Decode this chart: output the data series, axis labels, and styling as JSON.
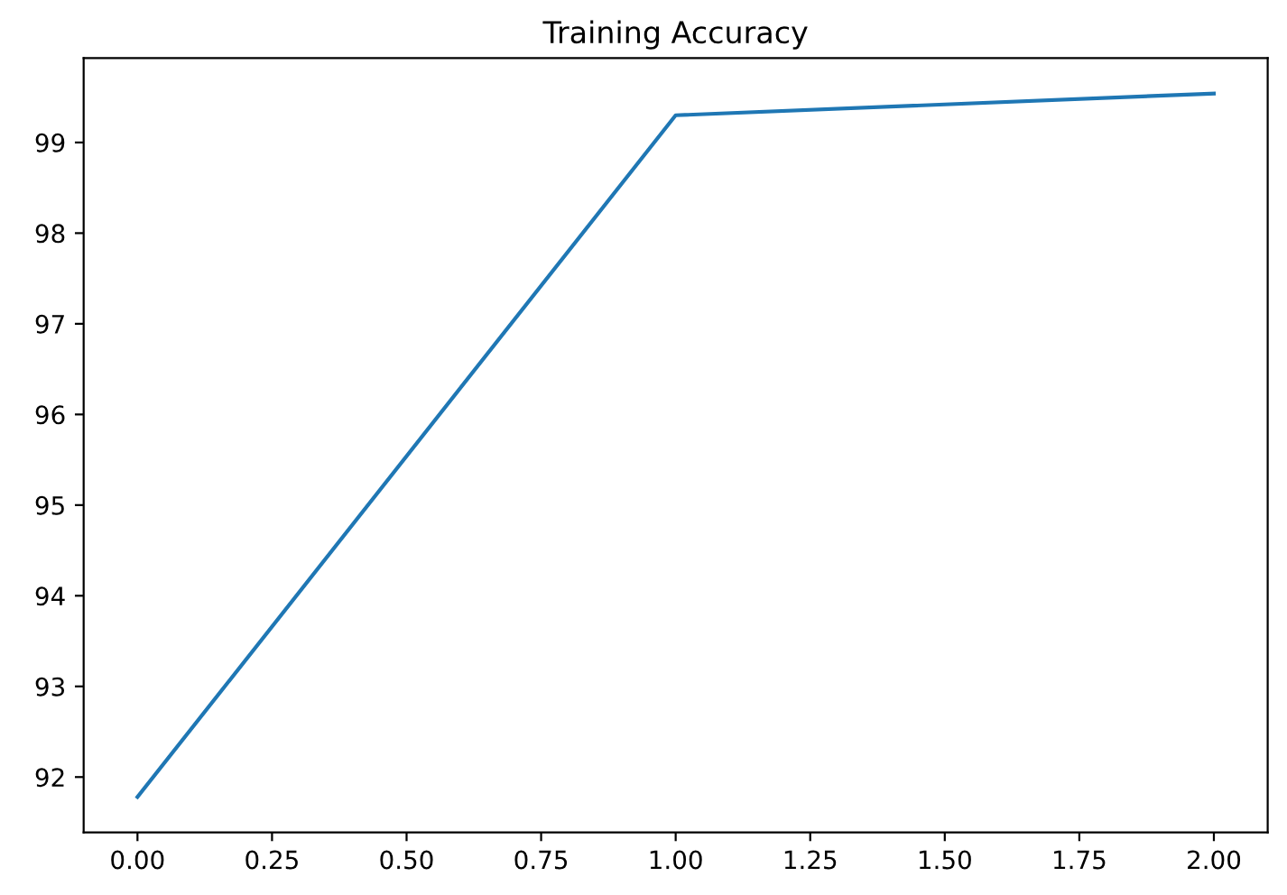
{
  "chart_data": {
    "type": "line",
    "title": "Training Accuracy",
    "x": [
      0,
      1,
      2
    ],
    "series": [
      {
        "color": "#1f77b4",
        "values": [
          91.78,
          99.3,
          99.54
        ]
      }
    ],
    "xlim": [
      -0.1,
      2.1
    ],
    "ylim": [
      91.39,
      99.93
    ],
    "xticks": [
      {
        "value": 0,
        "label": "0.00"
      },
      {
        "value": 0.25,
        "label": "0.25"
      },
      {
        "value": 0.5,
        "label": "0.50"
      },
      {
        "value": 0.75,
        "label": "0.75"
      },
      {
        "value": 1,
        "label": "1.00"
      },
      {
        "value": 1.25,
        "label": "1.25"
      },
      {
        "value": 1.5,
        "label": "1.50"
      },
      {
        "value": 1.75,
        "label": "1.75"
      },
      {
        "value": 2,
        "label": "2.00"
      }
    ],
    "yticks": [
      92,
      93,
      94,
      95,
      96,
      97,
      98,
      99
    ]
  }
}
